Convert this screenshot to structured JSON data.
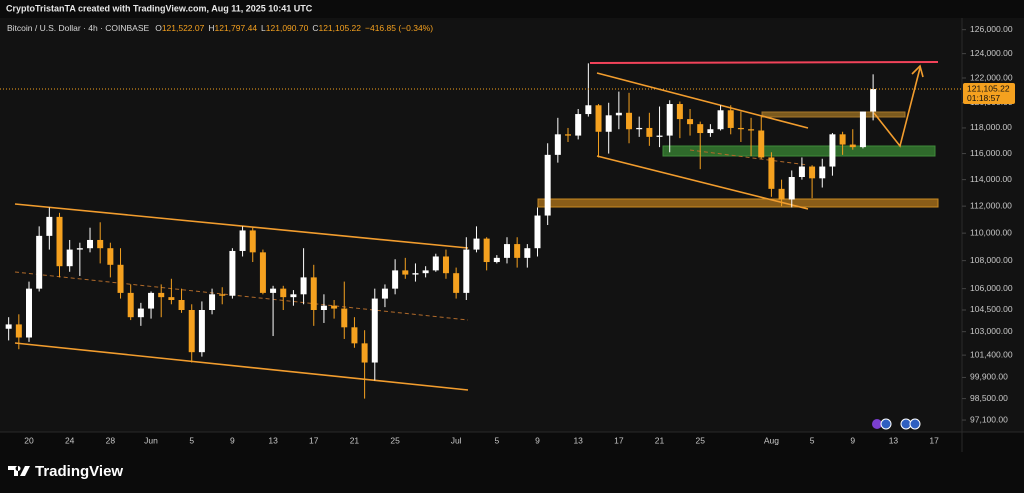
{
  "header": {
    "credit": "CryptoTristanTA created with TradingView.com, Aug 11, 2025 10:41 UTC"
  },
  "footer": {
    "brand": "TradingView"
  },
  "chart_data": {
    "type": "candlestick",
    "symbol": "Bitcoin / U.S. Dollar · 4h · COINBASE",
    "ohlc_header": [
      {
        "label": "O",
        "value": "121,522.07"
      },
      {
        "label": "H",
        "value": "121,797.44"
      },
      {
        "label": "L",
        "value": "121,090.70"
      },
      {
        "label": "C",
        "value": "121,105.22"
      }
    ],
    "change": "−416.85 (−0.34%)",
    "last_price_label": "121,105.22",
    "countdown": "01:18:57",
    "y_scale": "log",
    "grid": false,
    "up_color": "#ffffff",
    "down_color": "#f5a11f",
    "ylim": [
      96200,
      126900
    ],
    "yticks": [
      {
        "value": 126000,
        "label": "126,000.00"
      },
      {
        "value": 124000,
        "label": "124,000.00"
      },
      {
        "value": 122000,
        "label": "122,000.00"
      },
      {
        "value": 120000,
        "label": "120,000.00"
      },
      {
        "value": 118000,
        "label": "118,000.00"
      },
      {
        "value": 116000,
        "label": "116,000.00"
      },
      {
        "value": 114000,
        "label": "114,000.00"
      },
      {
        "value": 112000,
        "label": "112,000.00"
      },
      {
        "value": 110000,
        "label": "110,000.00"
      },
      {
        "value": 108000,
        "label": "108,000.00"
      },
      {
        "value": 106000,
        "label": "106,000.00"
      },
      {
        "value": 104500,
        "label": "104,500.00"
      },
      {
        "value": 103000,
        "label": "103,000.00"
      },
      {
        "value": 101400,
        "label": "101,400.00"
      },
      {
        "value": 99900,
        "label": "99,900.00"
      },
      {
        "value": 98500,
        "label": "98,500.00"
      },
      {
        "value": 97100,
        "label": "97,100.00"
      }
    ],
    "categories": [
      null,
      null,
      "20",
      null,
      null,
      null,
      "24",
      null,
      null,
      null,
      "28",
      null,
      null,
      null,
      "Jun",
      null,
      null,
      null,
      "5",
      null,
      null,
      null,
      "9",
      null,
      null,
      null,
      "13",
      null,
      null,
      null,
      "17",
      null,
      null,
      null,
      "21",
      null,
      null,
      null,
      "25",
      null,
      null,
      null,
      null,
      null,
      "Jul",
      null,
      null,
      null,
      "5",
      null,
      null,
      null,
      "9",
      null,
      null,
      null,
      "13",
      null,
      null,
      null,
      "17",
      null,
      null,
      null,
      "21",
      null,
      null,
      null,
      "25",
      null,
      null,
      null,
      null,
      null,
      null,
      "Aug",
      null,
      null,
      null,
      "5",
      null,
      null,
      null,
      "9",
      null,
      null,
      null,
      "13",
      null,
      null,
      null,
      "17"
    ],
    "ohlc": {
      "open": [
        103200,
        103500,
        102600,
        106000,
        109800,
        111200,
        107600,
        108800,
        108900,
        109500,
        108900,
        107700,
        105700,
        104000,
        104600,
        105700,
        105400,
        105200,
        104500,
        101600,
        104500,
        105600,
        105500,
        108700,
        110200,
        108600,
        105700,
        106000,
        105400,
        105600,
        106800,
        104500,
        104800,
        104600,
        103300,
        102200,
        100900,
        105300,
        106000,
        107300,
        107000,
        107100,
        107300,
        108300,
        107100,
        105700,
        108800,
        109600,
        107900,
        108200,
        109200,
        108200,
        108900,
        111300,
        115900,
        117500,
        117400,
        119100,
        119800,
        117700,
        119000,
        119200,
        117900,
        118000,
        117300,
        117400,
        119900,
        118700,
        118300,
        117600,
        117900,
        119400,
        118000,
        117900,
        117800,
        115700,
        113300,
        112500,
        114200,
        115000,
        114100,
        115000,
        117500,
        116700,
        116500,
        119300,
        null,
        null,
        null,
        null,
        null,
        null
      ],
      "high": [
        104000,
        104200,
        106500,
        110500,
        111900,
        111500,
        109500,
        109300,
        110400,
        110800,
        109300,
        108900,
        106300,
        105000,
        105800,
        106300,
        106700,
        106000,
        104900,
        105100,
        106000,
        106100,
        108900,
        110500,
        110400,
        108800,
        106200,
        106200,
        105900,
        108900,
        107700,
        105600,
        105200,
        106500,
        104000,
        103100,
        106000,
        106300,
        108100,
        108200,
        107800,
        107600,
        108500,
        108800,
        107500,
        109700,
        110500,
        109700,
        108400,
        109700,
        109700,
        109200,
        111900,
        116800,
        118800,
        118000,
        119500,
        123200,
        119900,
        120000,
        120900,
        120800,
        118900,
        119200,
        119700,
        120200,
        120100,
        119500,
        118500,
        118300,
        119800,
        119800,
        119300,
        118800,
        118900,
        116100,
        114000,
        114700,
        115700,
        115100,
        115600,
        117600,
        117700,
        117900,
        119300,
        122300,
        null,
        null,
        null,
        null,
        null,
        null
      ],
      "low": [
        102400,
        101800,
        102300,
        105800,
        108800,
        106800,
        107200,
        106900,
        108600,
        107800,
        106800,
        105300,
        103800,
        103400,
        103900,
        104000,
        104900,
        104300,
        100900,
        101300,
        104200,
        104900,
        105300,
        108300,
        107900,
        105600,
        102700,
        104500,
        104800,
        104900,
        103400,
        103600,
        103900,
        102500,
        101900,
        98500,
        99700,
        104700,
        105600,
        106700,
        106500,
        106800,
        107200,
        106700,
        105300,
        105200,
        108600,
        107300,
        107800,
        107800,
        107500,
        107500,
        108300,
        110600,
        115300,
        116900,
        117100,
        118900,
        115700,
        116000,
        117900,
        116800,
        117300,
        116600,
        116500,
        116100,
        117200,
        117400,
        114800,
        117300,
        117800,
        117500,
        116900,
        115800,
        115600,
        112700,
        112000,
        111900,
        114000,
        112600,
        113400,
        114300,
        115900,
        116300,
        116400,
        118600,
        null,
        null,
        null,
        null,
        null,
        null
      ],
      "close": [
        103500,
        102600,
        106000,
        109800,
        111200,
        107600,
        108800,
        108900,
        109500,
        108900,
        107700,
        105700,
        104000,
        104600,
        105700,
        105400,
        105200,
        104500,
        101600,
        104500,
        105600,
        105500,
        108700,
        110200,
        108600,
        105700,
        106000,
        105400,
        105600,
        106800,
        104500,
        104800,
        104600,
        103300,
        102200,
        100900,
        105300,
        106000,
        107300,
        107000,
        107100,
        107300,
        108300,
        107100,
        105700,
        108800,
        109600,
        107900,
        108200,
        109200,
        108200,
        108900,
        111300,
        115900,
        117500,
        117400,
        119100,
        119800,
        117700,
        119000,
        119200,
        117900,
        118000,
        117300,
        117400,
        119900,
        118700,
        118300,
        117600,
        117900,
        119400,
        118000,
        117900,
        117800,
        115700,
        113300,
        112500,
        114200,
        115000,
        114100,
        115000,
        117500,
        116700,
        116500,
        119300,
        121105.22,
        null,
        null,
        null,
        null,
        null,
        null
      ]
    }
  }
}
